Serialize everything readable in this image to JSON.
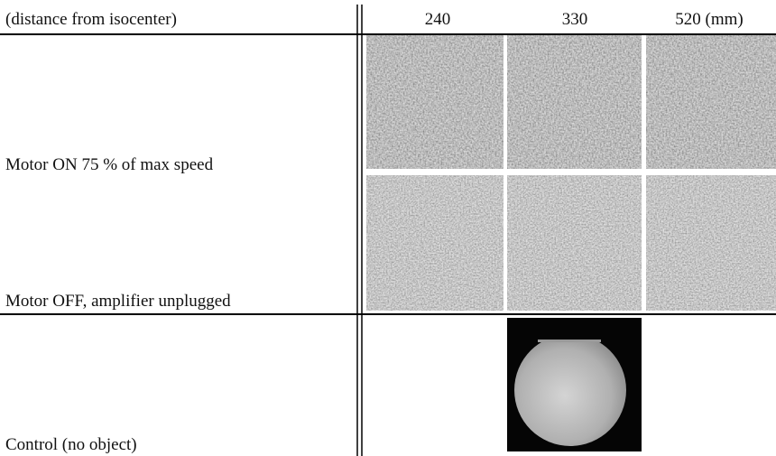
{
  "table": {
    "header": [
      "(distance from isocenter)",
      "240",
      "330",
      "520 (mm)"
    ],
    "rows": [
      {
        "label": "Motor ON 75 % of max speed"
      },
      {
        "label": "Motor OFF, amplifier unplugged"
      },
      {
        "label": "Control (no object)"
      }
    ]
  }
}
